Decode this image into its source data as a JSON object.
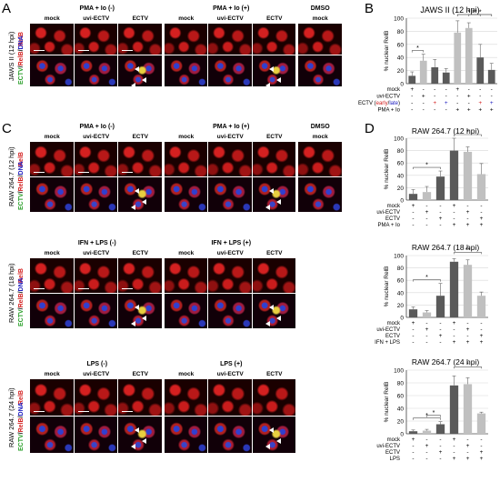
{
  "panels": {
    "A": "A",
    "B": "B",
    "C": "C",
    "D": "D"
  },
  "a": {
    "cond_neg": "PMA + Io (-)",
    "cond_pos": "PMA + Io (+)",
    "cond_dmso": "DMSO",
    "cols": [
      "mock",
      "uvi-ECTV",
      "ECTV",
      "mock",
      "uvi-ECTV",
      "ECTV",
      "mock"
    ],
    "row_label": "JAWS II (12 hpi)",
    "stain_top": "RelB",
    "stain_bottom": {
      "ectv": "ECTV",
      "s1": "/",
      "relb": "RelB",
      "s2": "/",
      "dna": "DNA"
    }
  },
  "c": {
    "blocks": [
      {
        "cond_neg": "PMA + Io (-)",
        "cond_pos": "PMA + Io (+)",
        "cond_dmso": "DMSO",
        "cols": [
          "mock",
          "uvi-ECTV",
          "ECTV",
          "mock",
          "uvi-ECTV",
          "ECTV",
          "mock"
        ],
        "row_label": "RAW 264.7 (12 hpi)"
      },
      {
        "cond_neg": "IFN + LPS (-)",
        "cond_pos": "IFN + LPS (+)",
        "cond_dmso": "",
        "cols": [
          "mock",
          "uvi-ECTV",
          "ECTV",
          "mock",
          "uvi-ECTV",
          "ECTV"
        ],
        "row_label": "RAW 264.7 (18 hpi)"
      },
      {
        "cond_neg": "LPS (-)",
        "cond_pos": "LPS (+)",
        "cond_dmso": "",
        "cols": [
          "mock",
          "uvi-ECTV",
          "ECTV",
          "mock",
          "uvi-ECTV",
          "ECTV"
        ],
        "row_label": "RAW 264.7 (24 hpi)"
      }
    ],
    "stain_top": "RelB",
    "stain_bottom": {
      "ectv": "ECTV",
      "s1": "/",
      "relb": "RelB",
      "s2": "/",
      "dna": "DNA"
    }
  },
  "colors": {
    "red": "#d42020",
    "green": "#2ca02c",
    "blue": "#2020c0",
    "bar_dark": "#5a5a5a",
    "bar_light": "#c0c0c0"
  },
  "chart_data": [
    {
      "type": "bar",
      "title": "JAWS II (12 hpi)",
      "ylabel": "% nuclear RelB",
      "ylim": [
        0,
        100
      ],
      "yticks": [
        0,
        20,
        40,
        60,
        80,
        100
      ],
      "values": [
        12,
        35,
        25,
        17,
        78,
        85,
        40,
        21
      ],
      "errors": [
        6,
        10,
        12,
        6,
        18,
        8,
        20,
        10
      ],
      "shades": [
        "dark",
        "light",
        "dark",
        "dark",
        "light",
        "light",
        "dark",
        "dark"
      ],
      "rows": [
        {
          "label": "mock",
          "marks": [
            "+",
            "-",
            "-",
            "-",
            "+",
            "-",
            "-",
            "-"
          ]
        },
        {
          "label": "uvi-ECTV",
          "marks": [
            "-",
            "+",
            "-",
            "-",
            "-",
            "+",
            "-",
            "-"
          ]
        },
        {
          "label": "ECTV (early/late)",
          "marks": [
            "-",
            "-",
            "+",
            "+",
            "-",
            "-",
            "+",
            "+"
          ]
        },
        {
          "label": "PMA + Io",
          "marks": [
            "-",
            "-",
            "-",
            "-",
            "+",
            "+",
            "+",
            "+"
          ]
        }
      ],
      "significance": [
        {
          "bars": [
            0,
            1
          ],
          "label": "*"
        },
        {
          "bars": [
            4,
            6
          ],
          "label": "*"
        },
        {
          "bars": [
            4,
            7
          ],
          "label": "**"
        },
        {
          "bars": [
            5,
            7
          ],
          "label": "*"
        }
      ]
    },
    {
      "type": "bar",
      "title": "RAW 264.7 (12 hpi)",
      "ylabel": "% nuclear RelB",
      "ylim": [
        0,
        100
      ],
      "yticks": [
        0,
        20,
        40,
        60,
        80,
        100
      ],
      "values": [
        10,
        13,
        38,
        80,
        78,
        42
      ],
      "errors": [
        7,
        9,
        9,
        20,
        8,
        17
      ],
      "shades": [
        "dark",
        "light",
        "dark",
        "dark",
        "light",
        "light"
      ],
      "rows": [
        {
          "label": "mock",
          "marks": [
            "+",
            "-",
            "-",
            "+",
            "-",
            "-"
          ]
        },
        {
          "label": "uvi-ECTV",
          "marks": [
            "-",
            "+",
            "-",
            "-",
            "+",
            "-"
          ]
        },
        {
          "label": "ECTV",
          "marks": [
            "-",
            "-",
            "+",
            "-",
            "-",
            "+"
          ]
        },
        {
          "label": "PMA + Io",
          "marks": [
            "-",
            "-",
            "-",
            "+",
            "+",
            "+"
          ]
        }
      ],
      "significance": [
        {
          "bars": [
            0,
            2
          ],
          "label": "*"
        },
        {
          "bars": [
            3,
            5
          ],
          "label": "*"
        }
      ]
    },
    {
      "type": "bar",
      "title": "RAW 264.7 (18 hpi)",
      "ylabel": "% nuclear RelB",
      "ylim": [
        0,
        100
      ],
      "yticks": [
        0,
        20,
        40,
        60,
        80,
        100
      ],
      "values": [
        13,
        8,
        35,
        90,
        85,
        35
      ],
      "errors": [
        4,
        3,
        20,
        5,
        8,
        6
      ],
      "shades": [
        "dark",
        "light",
        "dark",
        "dark",
        "light",
        "light"
      ],
      "rows": [
        {
          "label": "mock",
          "marks": [
            "+",
            "-",
            "-",
            "+",
            "-",
            "-"
          ]
        },
        {
          "label": "uvi-ECTV",
          "marks": [
            "-",
            "+",
            "-",
            "-",
            "+",
            "-"
          ]
        },
        {
          "label": "ECTV",
          "marks": [
            "-",
            "-",
            "+",
            "-",
            "-",
            "+"
          ]
        },
        {
          "label": "IFN + LPS",
          "marks": [
            "-",
            "-",
            "-",
            "+",
            "+",
            "+"
          ]
        }
      ],
      "significance": [
        {
          "bars": [
            0,
            2
          ],
          "label": "*"
        },
        {
          "bars": [
            3,
            5
          ],
          "label": "**"
        }
      ]
    },
    {
      "type": "bar",
      "title": "RAW 264.7 (24 hpi)",
      "ylabel": "% nuclear RelB",
      "ylim": [
        0,
        100
      ],
      "yticks": [
        0,
        20,
        40,
        60,
        80,
        100
      ],
      "values": [
        4,
        5,
        15,
        76,
        78,
        32
      ],
      "errors": [
        2,
        2,
        4,
        15,
        10,
        2
      ],
      "shades": [
        "dark",
        "light",
        "dark",
        "dark",
        "light",
        "light"
      ],
      "rows": [
        {
          "label": "mock",
          "marks": [
            "+",
            "-",
            "-",
            "+",
            "-",
            "-"
          ]
        },
        {
          "label": "uvi-ECTV",
          "marks": [
            "-",
            "+",
            "-",
            "-",
            "+",
            "-"
          ]
        },
        {
          "label": "ECTV",
          "marks": [
            "-",
            "-",
            "+",
            "-",
            "-",
            "+"
          ]
        },
        {
          "label": "LPS",
          "marks": [
            "-",
            "-",
            "-",
            "+",
            "+",
            "+"
          ]
        }
      ],
      "significance": [
        {
          "bars": [
            0,
            2
          ],
          "label": "*"
        },
        {
          "bars": [
            1,
            2
          ],
          "label": "*"
        },
        {
          "bars": [
            3,
            5
          ],
          "label": "*"
        }
      ]
    }
  ]
}
